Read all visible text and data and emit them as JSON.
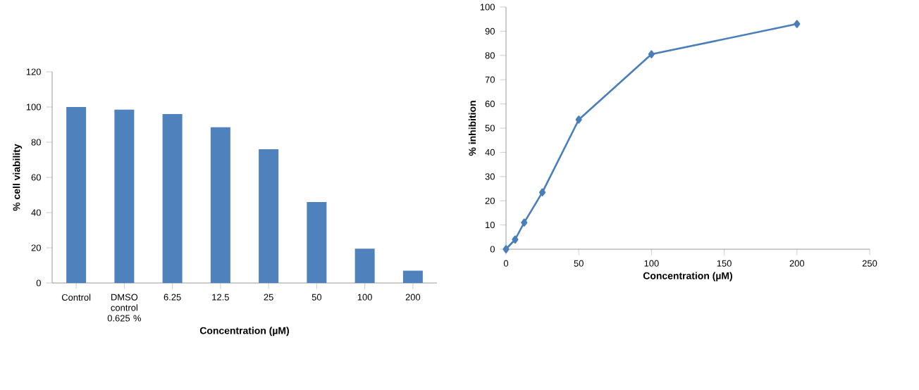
{
  "chart_data": [
    {
      "type": "bar",
      "xlabel": "Concentration (µM)",
      "ylabel": "% cell viability",
      "categories": [
        "Control",
        "DMSO control 0.625 %",
        "6.25",
        "12.5",
        "25",
        "50",
        "100",
        "200"
      ],
      "values": [
        100,
        98.5,
        96,
        88.5,
        76,
        46,
        19.5,
        7
      ],
      "color": "#4f81bd",
      "ylim": [
        0,
        120
      ],
      "yticks": [
        0,
        20,
        40,
        60,
        80,
        100,
        120
      ],
      "grid": false
    },
    {
      "type": "line",
      "xlabel": "Concentration (µM)",
      "ylabel": "% inhibition",
      "x": [
        0,
        6.25,
        12.5,
        25,
        50,
        100,
        200
      ],
      "values": [
        0,
        4,
        11,
        23.5,
        53.5,
        80.5,
        93
      ],
      "color": "#4a7ebb",
      "marker": "diamond",
      "line_style": "solid",
      "xlim": [
        0,
        250
      ],
      "xticks": [
        0,
        50,
        100,
        150,
        200,
        250
      ],
      "ylim": [
        0,
        100
      ],
      "yticks": [
        0,
        10,
        20,
        30,
        40,
        50,
        60,
        70,
        80,
        90,
        100
      ],
      "grid": false
    }
  ]
}
